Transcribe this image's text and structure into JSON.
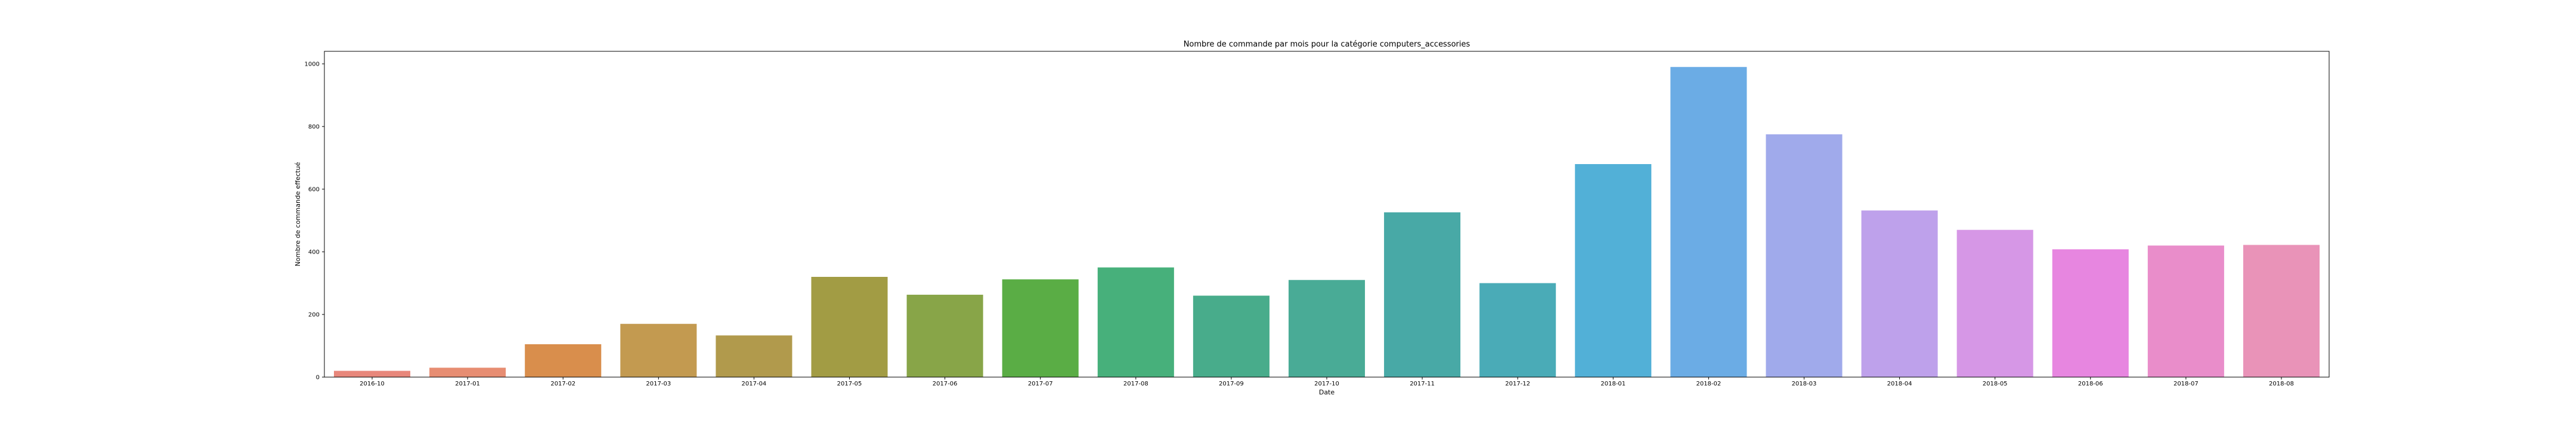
{
  "chart_data": {
    "type": "bar",
    "title": "Nombre de commande par mois pour la catégorie computers_accessories",
    "xlabel": "Date",
    "ylabel": "Nombre de commande effectué",
    "ylim": [
      0,
      1040
    ],
    "yticks": [
      0,
      200,
      400,
      600,
      800,
      1000
    ],
    "grid": false,
    "categories": [
      "2016-10",
      "2017-01",
      "2017-02",
      "2017-03",
      "2017-04",
      "2017-05",
      "2017-06",
      "2017-07",
      "2017-08",
      "2017-09",
      "2017-10",
      "2017-11",
      "2017-12",
      "2018-01",
      "2018-02",
      "2018-03",
      "2018-04",
      "2018-05",
      "2018-06",
      "2018-07",
      "2018-08"
    ],
    "values": [
      20,
      30,
      105,
      170,
      133,
      320,
      263,
      312,
      350,
      260,
      310,
      526,
      300,
      680,
      990,
      775,
      532,
      470,
      408,
      420,
      422
    ],
    "colors": [
      "#e8877b",
      "#e78d72",
      "#d98e4c",
      "#c39a50",
      "#b19a4c",
      "#a29c44",
      "#88a548",
      "#5aad45",
      "#47b07b",
      "#48ac8b",
      "#49ab96",
      "#48a9a6",
      "#4aabb7",
      "#52b0d7",
      "#6bace5",
      "#a0aaeb",
      "#bea1eb",
      "#d697e6",
      "#e786e0",
      "#e98dca",
      "#e993b8"
    ]
  }
}
